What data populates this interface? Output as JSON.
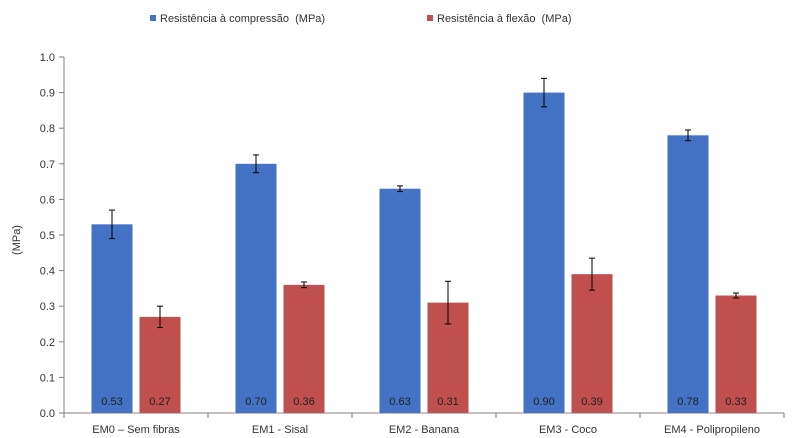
{
  "chart_data": {
    "type": "bar",
    "ylabel": "(MPa)",
    "ylim": [
      0,
      1.0
    ],
    "yticks": [
      "0.0",
      "0.1",
      "0.2",
      "0.3",
      "0.4",
      "0.5",
      "0.6",
      "0.7",
      "0.8",
      "0.9",
      "1.0"
    ],
    "grid": false,
    "legend_position": "top",
    "categories": [
      "EM0 – Sem fibras",
      "EM1 - Sisal",
      "EM2 - Banana",
      "EM3 - Coco",
      "EM4 - Polipropileno"
    ],
    "series": [
      {
        "name": "Resistência à compressão  (MPa)",
        "color": "#4472C4",
        "values": [
          0.53,
          0.7,
          0.63,
          0.9,
          0.78
        ],
        "labels": [
          "0.53",
          "0.70",
          "0.63",
          "0.90",
          "0.78"
        ],
        "errors": [
          0.04,
          0.025,
          0.008,
          0.04,
          0.015
        ]
      },
      {
        "name": "Resistência à flexão  (MPa)",
        "color": "#C0504D",
        "values": [
          0.27,
          0.36,
          0.31,
          0.39,
          0.33
        ],
        "labels": [
          "0.27",
          "0.36",
          "0.31",
          "0.39",
          "0.33"
        ],
        "errors": [
          0.03,
          0.008,
          0.06,
          0.045,
          0.007
        ]
      }
    ]
  }
}
